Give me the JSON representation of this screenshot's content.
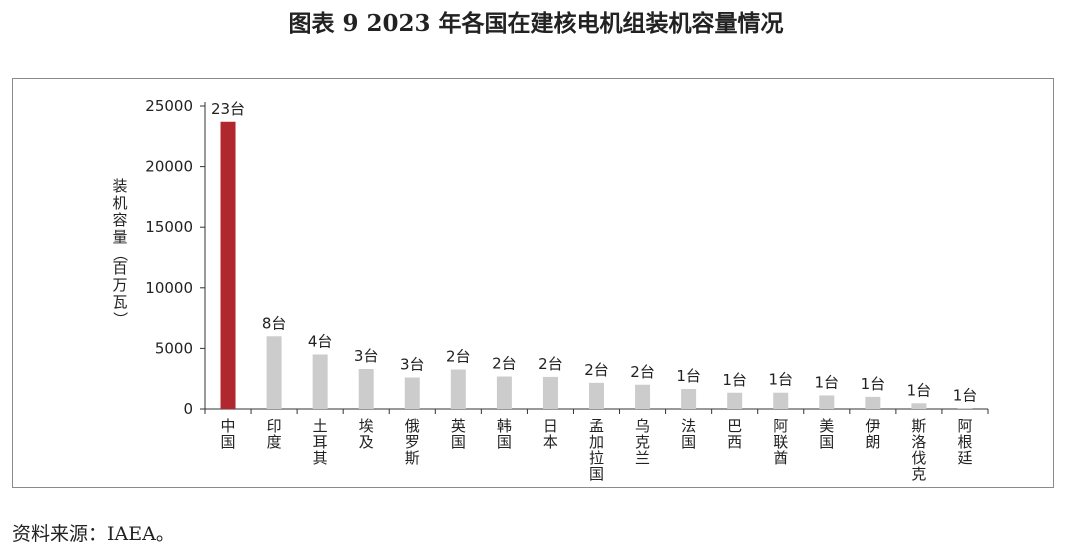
{
  "figure_title": "图表 9  2023 年各国在建核电机组装机容量情况",
  "source_note": "资料来源：IAEA。",
  "chart_data": {
    "type": "bar",
    "ylabel": "装机容量（百万瓦）",
    "ylim": [
      0,
      25000
    ],
    "yticks": [
      0,
      5000,
      10000,
      15000,
      20000,
      25000
    ],
    "grid": false,
    "legend": "none",
    "colors": {
      "highlight": "#b0282e",
      "default": "#cccccc"
    },
    "categories": [
      "中国",
      "印度",
      "土耳其",
      "埃及",
      "俄罗斯",
      "英国",
      "韩国",
      "日本",
      "孟加拉国",
      "乌克兰",
      "法国",
      "巴西",
      "阿联酋",
      "美国",
      "伊朗",
      "斯洛伐克",
      "阿根廷"
    ],
    "values": [
      23700,
      6000,
      4500,
      3300,
      2600,
      3260,
      2680,
      2650,
      2160,
      2000,
      1650,
      1340,
      1345,
      1117,
      1000,
      470,
      29
    ],
    "data_labels": [
      "23台",
      "8台",
      "4台",
      "3台",
      "3台",
      "2台",
      "2台",
      "2台",
      "2台",
      "2台",
      "1台",
      "1台",
      "1台",
      "1台",
      "1台",
      "1台",
      "1台"
    ]
  }
}
